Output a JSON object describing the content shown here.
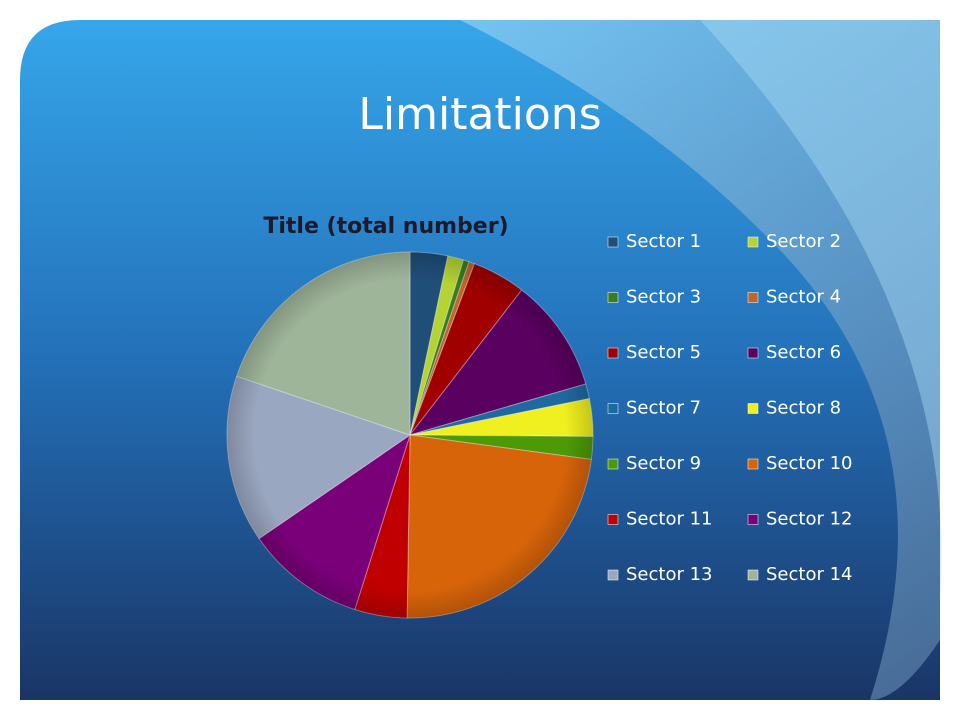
{
  "slide": {
    "title": "Limitations"
  },
  "chart_data": {
    "type": "pie",
    "title": "Title (total number)",
    "categories": [
      "Sector 1",
      "Sector 2",
      "Sector 3",
      "Sector 4",
      "Sector 5",
      "Sector 6",
      "Sector 7",
      "Sector 8",
      "Sector 9",
      "Sector 10",
      "Sector 11",
      "Sector 12",
      "Sector 13",
      "Sector 14"
    ],
    "values": [
      3.3,
      1.4,
      0.5,
      0.5,
      4.7,
      10,
      1.3,
      3.3,
      2,
      23,
      4.6,
      10.5,
      14.7,
      19.7
    ],
    "colors": [
      "#1f4e79",
      "#b5d334",
      "#3a7d1f",
      "#c0662b",
      "#a00000",
      "#5a0060",
      "#1e6aa0",
      "#f0f020",
      "#4e9a06",
      "#d8640a",
      "#c00000",
      "#7a007a",
      "#9aa7c0",
      "#9fb59a"
    ],
    "legend": "right"
  }
}
